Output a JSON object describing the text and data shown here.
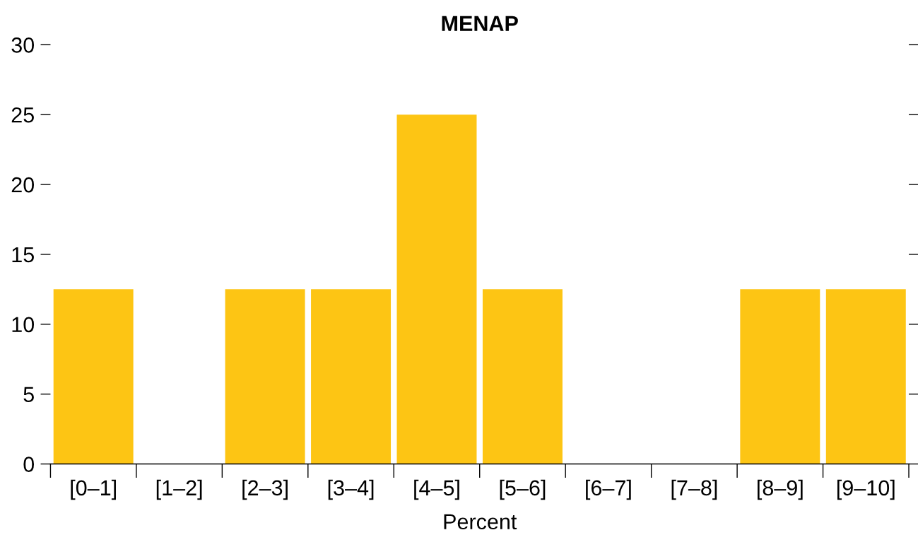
{
  "chart_data": {
    "type": "bar",
    "title": "MENAP",
    "xlabel": "Percent",
    "categories": [
      "[0–1]",
      "[1–2]",
      "[2–3]",
      "[3–4]",
      "[4–5]",
      "[5–6]",
      "[6–7]",
      "[7–8]",
      "[8–9]",
      "[9–10]"
    ],
    "values": [
      12.5,
      0,
      12.5,
      12.5,
      25,
      12.5,
      0,
      0,
      12.5,
      12.5
    ],
    "color": "#fdc514",
    "ylim": [
      0,
      30
    ],
    "yticks": [
      0,
      5,
      10,
      15,
      20,
      25,
      30
    ],
    "grid": false,
    "legend": false
  }
}
